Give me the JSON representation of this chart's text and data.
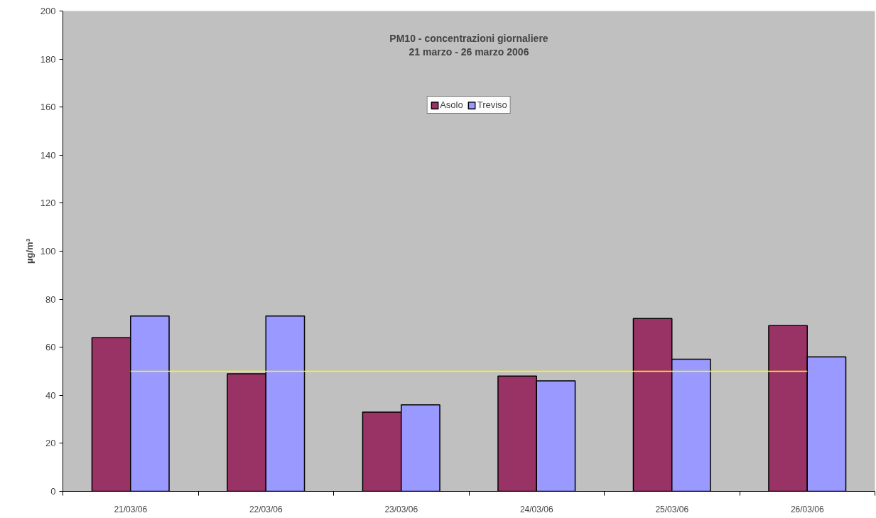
{
  "chart_data": {
    "type": "bar",
    "title": "PM10 - concentrazioni giornaliere\n21 marzo - 26 marzo 2006",
    "ylabel": "µg/m³",
    "categories": [
      "21/03/06",
      "22/03/06",
      "23/03/06",
      "24/03/06",
      "25/03/06",
      "26/03/06"
    ],
    "series": [
      {
        "name": "Asolo",
        "color": "#993366",
        "values": [
          64,
          49,
          33,
          48,
          72,
          69
        ]
      },
      {
        "name": "Treviso",
        "color": "#9999ff",
        "values": [
          73,
          73,
          36,
          46,
          55,
          56
        ]
      }
    ],
    "ylim": [
      0,
      200
    ],
    "yticks": [
      0,
      20,
      40,
      60,
      80,
      100,
      120,
      140,
      160,
      180,
      200
    ],
    "ref_lines": [
      {
        "axis": "y",
        "value": 50,
        "color": "#ffff00"
      }
    ],
    "grid": false,
    "legend": "top"
  }
}
